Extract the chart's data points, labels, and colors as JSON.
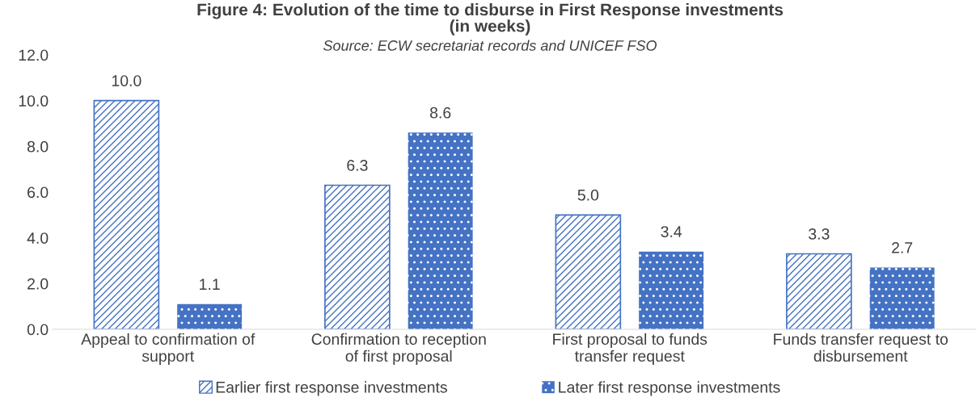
{
  "chart_data": {
    "type": "bar",
    "title": "Figure 4: Evolution of the time to disburse in First Response investments\n(in weeks)",
    "annotations": [
      "Source: ECW secretariat records and UNICEF FSO"
    ],
    "categories": [
      "Appeal to confirmation of\nsupport",
      "Confirmation to reception\nof first proposal",
      "First proposal to funds\ntransfer request",
      "Funds transfer request to\ndisbursement"
    ],
    "series": [
      {
        "name": "Earlier first response investments",
        "color": "#4472c4",
        "values": [
          10.0,
          6.3,
          5.0,
          3.3
        ],
        "value_labels": [
          "10.0",
          "6.3",
          "5.0",
          "3.3"
        ]
      },
      {
        "name": "Later first response investments",
        "color": "#4472c4",
        "values": [
          1.1,
          8.6,
          3.4,
          2.7
        ],
        "value_labels": [
          "1.1",
          "8.6",
          "3.4",
          "2.7"
        ]
      }
    ],
    "ylim": [
      0,
      12
    ],
    "yticks": [
      {
        "value": 0,
        "label": "0.0"
      },
      {
        "value": 2,
        "label": "2.0"
      },
      {
        "value": 4,
        "label": "4.0"
      },
      {
        "value": 6,
        "label": "6.0"
      },
      {
        "value": 8,
        "label": "8.0"
      },
      {
        "value": 10,
        "label": "10.0"
      },
      {
        "value": 12,
        "label": "12.0"
      }
    ],
    "grid": false,
    "legend": "bottom"
  }
}
